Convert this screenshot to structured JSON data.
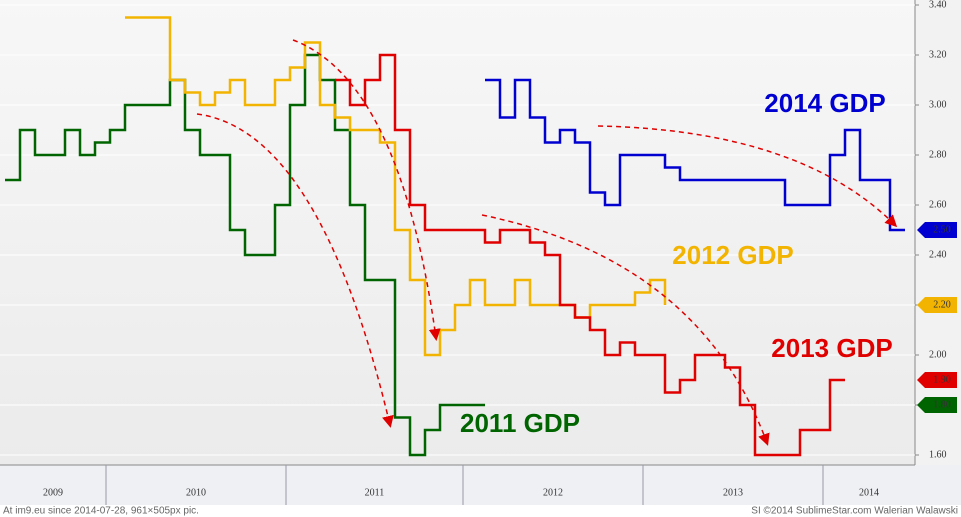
{
  "chart_data": {
    "type": "line",
    "step": true,
    "x_labels": [
      "2009",
      "2010",
      "2011",
      "2012",
      "2013",
      "2014"
    ],
    "ylim": [
      1.56,
      3.42
    ],
    "yticks": [
      {
        "value": 1.6,
        "label": "1.60"
      },
      {
        "value": 1.8,
        "label": "1.80"
      },
      {
        "value": 2.0,
        "label": "2.00"
      },
      {
        "value": 2.2,
        "label": "2.20"
      },
      {
        "value": 2.4,
        "label": "2.40"
      },
      {
        "value": 2.6,
        "label": "2.60"
      },
      {
        "value": 2.8,
        "label": "2.80"
      },
      {
        "value": 3.0,
        "label": "3.00"
      },
      {
        "value": 3.2,
        "label": "3.20"
      },
      {
        "value": 3.4,
        "label": "3.40"
      }
    ],
    "grid": true,
    "series": [
      {
        "name": "2011 GDP",
        "color": "#006400",
        "values": [
          2.7,
          2.9,
          2.8,
          2.8,
          2.9,
          2.8,
          2.85,
          2.9,
          3.0,
          3.0,
          3.0,
          3.1,
          2.9,
          2.8,
          2.8,
          2.5,
          2.4,
          2.4,
          2.6,
          3.0,
          3.2,
          3.1,
          2.9,
          2.6,
          2.3,
          2.3,
          1.75,
          1.6,
          1.7,
          1.8,
          1.8,
          1.8,
          1.8,
          null,
          null,
          null,
          null,
          null,
          null,
          null,
          null,
          null,
          null,
          null,
          null,
          null,
          null,
          null,
          null,
          null,
          null,
          null,
          null,
          null,
          null,
          null,
          null,
          null,
          null,
          null,
          null
        ],
        "value_tag": {
          "value": 1.8,
          "label": "1.80"
        }
      },
      {
        "name": "2012 GDP",
        "color": "#f2b400",
        "values": [
          null,
          null,
          null,
          null,
          null,
          null,
          null,
          null,
          3.35,
          3.35,
          3.35,
          3.1,
          3.05,
          3.0,
          3.05,
          3.1,
          3.0,
          3.0,
          3.1,
          3.15,
          3.25,
          3.0,
          2.95,
          2.9,
          2.9,
          2.85,
          2.5,
          2.3,
          2.0,
          2.1,
          2.2,
          2.3,
          2.2,
          2.2,
          2.3,
          2.2,
          2.2,
          2.2,
          2.15,
          2.2,
          2.2,
          2.2,
          2.25,
          2.3,
          2.2,
          null,
          null,
          null,
          null,
          null,
          null,
          null,
          null,
          null,
          null,
          null,
          null,
          null,
          null,
          null,
          null
        ],
        "value_tag": {
          "value": 2.2,
          "label": "2.20"
        }
      },
      {
        "name": "2013 GDP",
        "color": "#e00000",
        "values": [
          null,
          null,
          null,
          null,
          null,
          null,
          null,
          null,
          null,
          null,
          null,
          null,
          null,
          null,
          null,
          null,
          null,
          null,
          null,
          null,
          null,
          null,
          3.1,
          3.0,
          3.1,
          3.2,
          2.9,
          2.6,
          2.5,
          2.5,
          2.5,
          2.5,
          2.45,
          2.5,
          2.5,
          2.45,
          2.4,
          2.2,
          2.15,
          2.1,
          2.0,
          2.05,
          2.0,
          2.0,
          1.85,
          1.9,
          2.0,
          2.0,
          1.95,
          1.8,
          1.6,
          1.6,
          1.6,
          1.7,
          1.7,
          1.9,
          1.9,
          null,
          null,
          null,
          null
        ],
        "value_tag": {
          "value": 1.9,
          "label": "1.90"
        }
      },
      {
        "name": "2014 GDP",
        "color": "#0000d0",
        "values": [
          null,
          null,
          null,
          null,
          null,
          null,
          null,
          null,
          null,
          null,
          null,
          null,
          null,
          null,
          null,
          null,
          null,
          null,
          null,
          null,
          null,
          null,
          null,
          null,
          null,
          null,
          null,
          null,
          null,
          null,
          null,
          null,
          3.1,
          2.95,
          3.1,
          2.95,
          2.85,
          2.9,
          2.85,
          2.65,
          2.6,
          2.8,
          2.8,
          2.8,
          2.75,
          2.7,
          2.7,
          2.7,
          2.7,
          2.7,
          2.7,
          2.7,
          2.6,
          2.6,
          2.6,
          2.8,
          2.9,
          2.7,
          2.7,
          2.5,
          2.5
        ],
        "value_tag": {
          "value": 2.5,
          "label": "2.50"
        }
      }
    ]
  },
  "footer": {
    "left": "At im9.eu since 2014-07-28, 961×505px pic.",
    "right": "SI ©2014 SublimeStar.com Walerian Walawski"
  }
}
